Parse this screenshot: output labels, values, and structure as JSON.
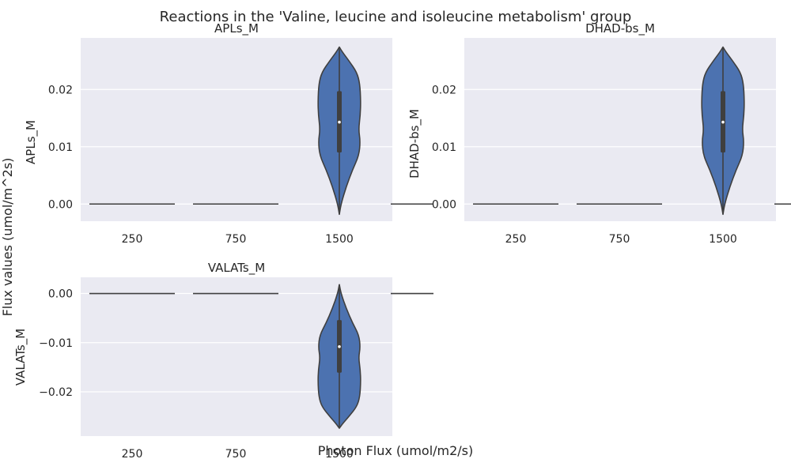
{
  "figure": {
    "suptitle": "Reactions in the 'Valine, leucine and isoleucine metabolism' group",
    "supxlabel": "Photon Flux (umol/m2/s)",
    "supylabel": "Flux values (umol/m^2s)"
  },
  "style": {
    "axes_bg": "#EAEAF2",
    "grid": "#FFFFFF",
    "violin_fill": "#4C72B0",
    "edge": "#3F3F3F"
  },
  "chart_data": [
    {
      "type": "violin",
      "title": "APLs_M",
      "xlabel": "",
      "ylabel": "APLs_M",
      "categories": [
        "250",
        "750",
        "1500"
      ],
      "ylim": [
        -0.003,
        0.029
      ],
      "yticks": [
        0.0,
        0.01,
        0.02
      ],
      "ytick_labels": [
        "0.00",
        "0.01",
        "0.02"
      ],
      "grid": true,
      "violins": [
        {
          "category": "250",
          "constant": 0.0
        },
        {
          "category": "750",
          "constant": 0.0
        },
        {
          "category": "1500",
          "min": -0.0018,
          "max": 0.0274,
          "q1": 0.009,
          "median": 0.0143,
          "q3": 0.0197,
          "profile": [
            [
              -0.0018,
              0.0
            ],
            [
              0.0,
              0.08
            ],
            [
              0.003,
              0.32
            ],
            [
              0.006,
              0.62
            ],
            [
              0.0085,
              0.92
            ],
            [
              0.011,
              0.98
            ],
            [
              0.013,
              0.9
            ],
            [
              0.0155,
              0.98
            ],
            [
              0.018,
              1.0
            ],
            [
              0.021,
              0.96
            ],
            [
              0.023,
              0.82
            ],
            [
              0.025,
              0.45
            ],
            [
              0.0265,
              0.15
            ],
            [
              0.0274,
              0.0
            ]
          ]
        },
        {
          "category": "",
          "constant": 0.0
        }
      ]
    },
    {
      "type": "violin",
      "title": "DHAD-bs_M",
      "xlabel": "",
      "ylabel": "DHAD-bs_M",
      "categories": [
        "250",
        "750",
        "1500"
      ],
      "ylim": [
        -0.003,
        0.029
      ],
      "yticks": [
        0.0,
        0.01,
        0.02
      ],
      "ytick_labels": [
        "0.00",
        "0.01",
        "0.02"
      ],
      "grid": true,
      "violins": [
        {
          "category": "250",
          "constant": 0.0
        },
        {
          "category": "750",
          "constant": 0.0
        },
        {
          "category": "1500",
          "min": -0.0018,
          "max": 0.0274,
          "q1": 0.009,
          "median": 0.0143,
          "q3": 0.0197,
          "profile": [
            [
              -0.0018,
              0.0
            ],
            [
              0.0,
              0.08
            ],
            [
              0.003,
              0.32
            ],
            [
              0.006,
              0.62
            ],
            [
              0.0085,
              0.92
            ],
            [
              0.011,
              0.98
            ],
            [
              0.013,
              0.9
            ],
            [
              0.0155,
              0.98
            ],
            [
              0.018,
              1.0
            ],
            [
              0.021,
              0.96
            ],
            [
              0.023,
              0.82
            ],
            [
              0.025,
              0.45
            ],
            [
              0.0265,
              0.15
            ],
            [
              0.0274,
              0.0
            ]
          ]
        },
        {
          "category": "",
          "constant": 0.0
        }
      ]
    },
    {
      "type": "violin",
      "title": "VALATs_M",
      "xlabel": "",
      "ylabel": "VALATs_M",
      "categories": [
        "250",
        "750",
        "1500"
      ],
      "ylim": [
        -0.029,
        0.0033
      ],
      "yticks": [
        0.0,
        -0.01,
        -0.02
      ],
      "ytick_labels": [
        "0.00",
        "−0.01",
        "−0.02"
      ],
      "grid": true,
      "violins": [
        {
          "category": "250",
          "constant": 0.0
        },
        {
          "category": "750",
          "constant": 0.0
        },
        {
          "category": "1500",
          "min": -0.0274,
          "max": 0.0018,
          "q1": -0.0161,
          "median": -0.0108,
          "q3": -0.0054,
          "profile": [
            [
              -0.0274,
              0.0
            ],
            [
              -0.0265,
              0.15
            ],
            [
              -0.025,
              0.45
            ],
            [
              -0.023,
              0.82
            ],
            [
              -0.021,
              0.96
            ],
            [
              -0.018,
              1.0
            ],
            [
              -0.0155,
              0.98
            ],
            [
              -0.013,
              0.9
            ],
            [
              -0.011,
              0.98
            ],
            [
              -0.0085,
              0.92
            ],
            [
              -0.006,
              0.62
            ],
            [
              -0.003,
              0.32
            ],
            [
              0.0,
              0.08
            ],
            [
              0.0018,
              0.0
            ]
          ]
        },
        {
          "category": "",
          "constant": 0.0
        }
      ]
    }
  ]
}
